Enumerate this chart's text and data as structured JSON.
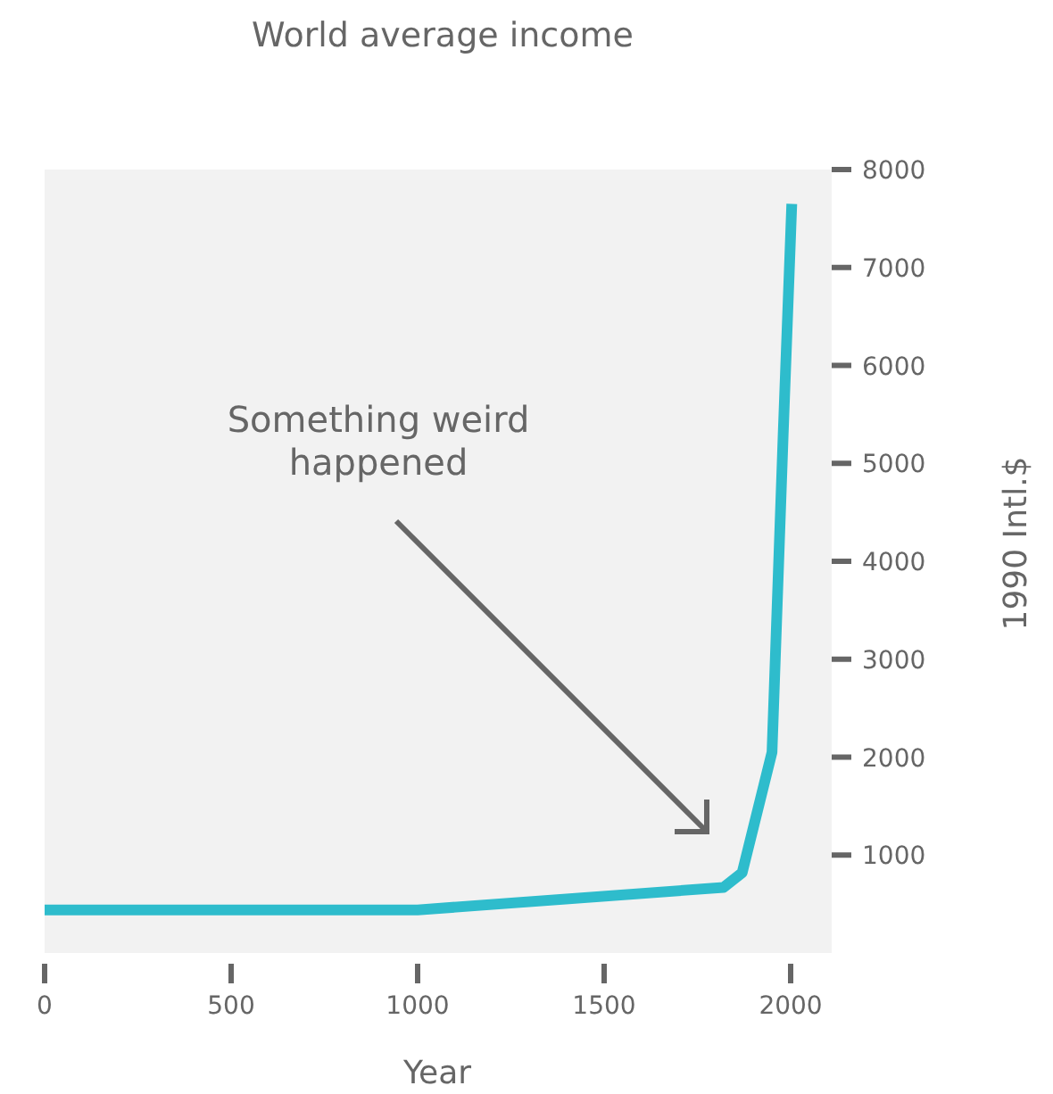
{
  "chart_data": {
    "type": "line",
    "title": "World average income",
    "xlabel": "Year",
    "ylabel": "1990 Intl.$",
    "x": [
      0,
      1000,
      1820,
      1870,
      1950,
      1980,
      2003
    ],
    "series": [
      {
        "color": "#2ebccc",
        "values": [
          440,
          440,
          670,
          820,
          2050,
          5300,
          7650
        ]
      }
    ],
    "xlim": [
      0,
      2110
    ],
    "xticks": [
      0,
      500,
      1000,
      1500,
      2000
    ],
    "ylim": [
      0,
      8000
    ],
    "yticks": [
      1000,
      2000,
      3000,
      4000,
      5000,
      6000,
      7000,
      8000
    ],
    "annotations": [
      "Something weird happened"
    ],
    "grid": false,
    "marker": "none",
    "line_style": "solid"
  }
}
